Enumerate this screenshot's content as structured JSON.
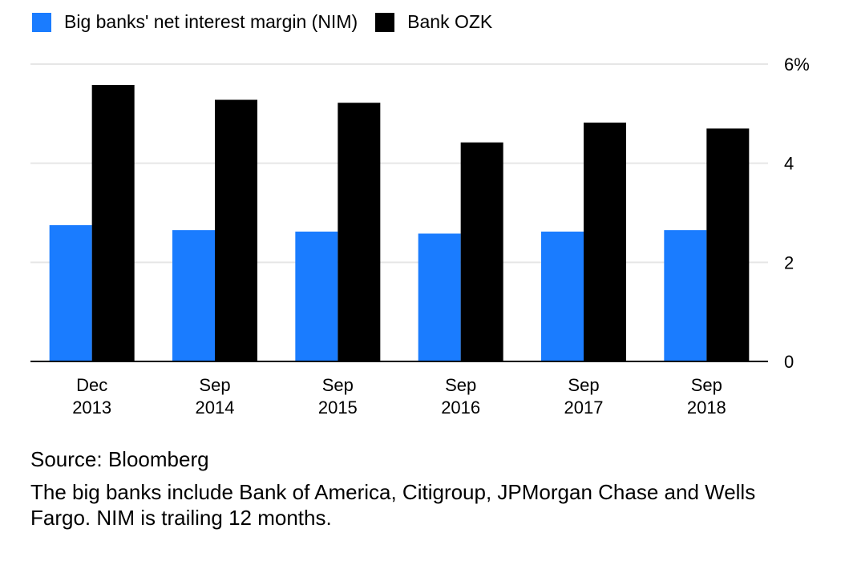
{
  "legend": {
    "items": [
      {
        "label": "Big banks' net interest margin (NIM)",
        "color": "#1a7cff"
      },
      {
        "label": "Bank OZK",
        "color": "#000000"
      }
    ]
  },
  "chart_data": {
    "type": "bar",
    "categories": [
      [
        "Dec",
        "2013"
      ],
      [
        "Sep",
        "2014"
      ],
      [
        "Sep",
        "2015"
      ],
      [
        "Sep",
        "2016"
      ],
      [
        "Sep",
        "2017"
      ],
      [
        "Sep",
        "2018"
      ]
    ],
    "series": [
      {
        "name": "Big banks' net interest margin (NIM)",
        "color": "#1a7cff",
        "values": [
          2.75,
          2.65,
          2.62,
          2.58,
          2.62,
          2.65
        ]
      },
      {
        "name": "Bank OZK",
        "color": "#000000",
        "values": [
          5.58,
          5.28,
          5.22,
          4.42,
          4.82,
          4.7
        ]
      }
    ],
    "ylim": [
      0,
      6
    ],
    "yticks": [
      "0",
      "2",
      "4",
      "6%"
    ],
    "grid": true,
    "legend_position": "top-left",
    "axis_position": "right"
  },
  "footer": {
    "source": "Source: Bloomberg",
    "note": "The big banks include Bank of America, Citigroup, JPMorgan Chase and Wells Fargo. NIM is trailing 12 months."
  }
}
